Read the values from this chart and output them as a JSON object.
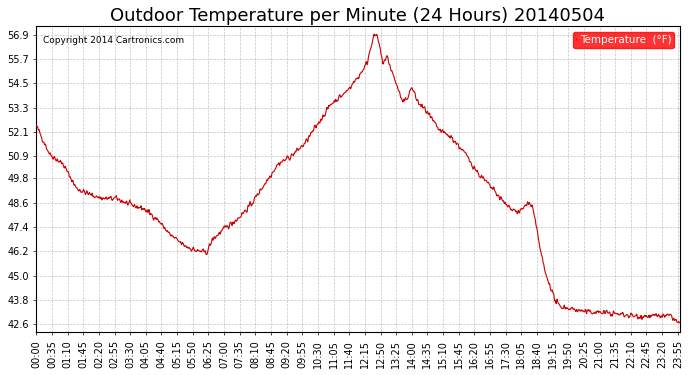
{
  "title": "Outdoor Temperature per Minute (24 Hours) 20140504",
  "copyright_text": "Copyright 2014 Cartronics.com",
  "legend_label": "Temperature  (°F)",
  "line_color": "#cc0000",
  "background_color": "#ffffff",
  "plot_bg_color": "#ffffff",
  "grid_color": "#aaaaaa",
  "yticks": [
    42.6,
    43.8,
    45.0,
    46.2,
    47.4,
    48.6,
    49.8,
    50.9,
    52.1,
    53.3,
    54.5,
    55.7,
    56.9
  ],
  "ylim": [
    42.2,
    57.3
  ],
  "xlabel": "",
  "ylabel": "",
  "title_fontsize": 13,
  "tick_fontsize": 7,
  "xtick_interval_minutes": 35
}
